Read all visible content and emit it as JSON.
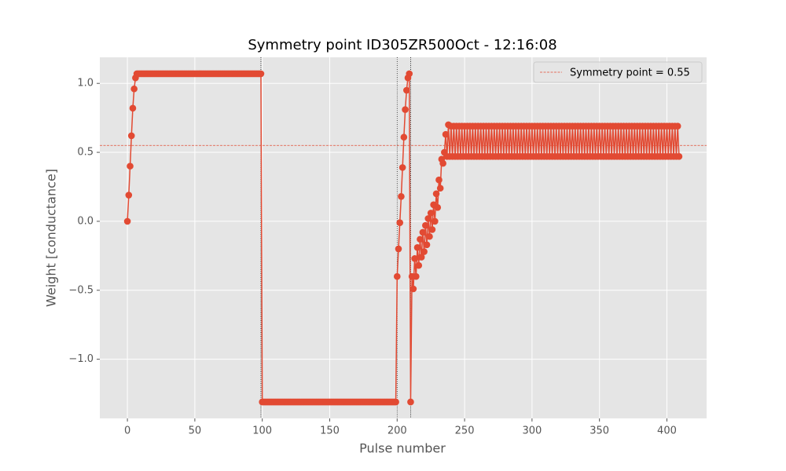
{
  "chart_data": {
    "type": "line",
    "title": "Symmetry point ID305ZR500Oct - 12:16:08",
    "xlabel": "Pulse number",
    "ylabel": "Weight [conductance]",
    "color": "#e24a33",
    "grid": true,
    "legend_position": "upper right",
    "hline": {
      "value": 0.55,
      "label": "Symmetry point = 0.55",
      "color": "#e24a33"
    },
    "vlines": [
      99,
      200,
      210
    ],
    "xlim": [
      -20.45,
      429.45
    ],
    "ylim": [
      -1.429,
      1.189
    ],
    "xticks": [
      0,
      50,
      100,
      150,
      200,
      250,
      300,
      350,
      400
    ],
    "yticks": [
      {
        "value": -1,
        "label": "−1.0"
      },
      {
        "value": -0.5,
        "label": "−0.5"
      },
      {
        "value": 0,
        "label": "0.0"
      },
      {
        "value": 0.5,
        "label": "0.5"
      },
      {
        "value": 1,
        "label": "1.0"
      }
    ],
    "x": [
      0,
      1,
      2,
      3,
      4,
      5,
      6,
      7,
      8,
      9,
      10,
      11,
      12,
      13,
      14,
      15,
      16,
      17,
      18,
      19,
      20,
      21,
      22,
      23,
      24,
      25,
      26,
      27,
      28,
      29,
      30,
      31,
      32,
      33,
      34,
      35,
      36,
      37,
      38,
      39,
      40,
      41,
      42,
      43,
      44,
      45,
      46,
      47,
      48,
      49,
      50,
      51,
      52,
      53,
      54,
      55,
      56,
      57,
      58,
      59,
      60,
      61,
      62,
      63,
      64,
      65,
      66,
      67,
      68,
      69,
      70,
      71,
      72,
      73,
      74,
      75,
      76,
      77,
      78,
      79,
      80,
      81,
      82,
      83,
      84,
      85,
      86,
      87,
      88,
      89,
      90,
      91,
      92,
      93,
      94,
      95,
      96,
      97,
      98,
      99,
      100,
      101,
      102,
      103,
      104,
      105,
      106,
      107,
      108,
      109,
      110,
      111,
      112,
      113,
      114,
      115,
      116,
      117,
      118,
      119,
      120,
      121,
      122,
      123,
      124,
      125,
      126,
      127,
      128,
      129,
      130,
      131,
      132,
      133,
      134,
      135,
      136,
      137,
      138,
      139,
      140,
      141,
      142,
      143,
      144,
      145,
      146,
      147,
      148,
      149,
      150,
      151,
      152,
      153,
      154,
      155,
      156,
      157,
      158,
      159,
      160,
      161,
      162,
      163,
      164,
      165,
      166,
      167,
      168,
      169,
      170,
      171,
      172,
      173,
      174,
      175,
      176,
      177,
      178,
      179,
      180,
      181,
      182,
      183,
      184,
      185,
      186,
      187,
      188,
      189,
      190,
      191,
      192,
      193,
      194,
      195,
      196,
      197,
      198,
      199,
      200,
      201,
      202,
      203,
      204,
      205,
      206,
      207,
      208,
      209,
      210,
      211,
      212,
      213,
      214,
      215,
      216,
      217,
      218,
      219,
      220,
      221,
      222,
      223,
      224,
      225,
      226,
      227,
      228,
      229,
      230,
      231,
      232,
      233,
      234,
      235,
      236,
      237,
      238,
      239,
      240,
      241,
      242,
      243,
      244,
      245,
      246,
      247,
      248,
      249,
      250,
      251,
      252,
      253,
      254,
      255,
      256,
      257,
      258,
      259,
      260,
      261,
      262,
      263,
      264,
      265,
      266,
      267,
      268,
      269,
      270,
      271,
      272,
      273,
      274,
      275,
      276,
      277,
      278,
      279,
      280,
      281,
      282,
      283,
      284,
      285,
      286,
      287,
      288,
      289,
      290,
      291,
      292,
      293,
      294,
      295,
      296,
      297,
      298,
      299,
      300,
      301,
      302,
      303,
      304,
      305,
      306,
      307,
      308,
      309,
      310,
      311,
      312,
      313,
      314,
      315,
      316,
      317,
      318,
      319,
      320,
      321,
      322,
      323,
      324,
      325,
      326,
      327,
      328,
      329,
      330,
      331,
      332,
      333,
      334,
      335,
      336,
      337,
      338,
      339,
      340,
      341,
      342,
      343,
      344,
      345,
      346,
      347,
      348,
      349,
      350,
      351,
      352,
      353,
      354,
      355,
      356,
      357,
      358,
      359,
      360,
      361,
      362,
      363,
      364,
      365,
      366,
      367,
      368,
      369,
      370,
      371,
      372,
      373,
      374,
      375,
      376,
      377,
      378,
      379,
      380,
      381,
      382,
      383,
      384,
      385,
      386,
      387,
      388,
      389,
      390,
      391,
      392,
      393,
      394,
      395,
      396,
      397,
      398,
      399,
      400,
      401,
      402,
      403,
      404,
      405,
      406,
      407,
      408,
      409
    ],
    "values": [
      0,
      0.19,
      0.4,
      0.62,
      0.82,
      0.96,
      1.04,
      1.07,
      1.07,
      1.07,
      1.07,
      1.07,
      1.07,
      1.07,
      1.07,
      1.07,
      1.07,
      1.07,
      1.07,
      1.07,
      1.07,
      1.07,
      1.07,
      1.07,
      1.07,
      1.07,
      1.07,
      1.07,
      1.07,
      1.07,
      1.07,
      1.07,
      1.07,
      1.07,
      1.07,
      1.07,
      1.07,
      1.07,
      1.07,
      1.07,
      1.07,
      1.07,
      1.07,
      1.07,
      1.07,
      1.07,
      1.07,
      1.07,
      1.07,
      1.07,
      1.07,
      1.07,
      1.07,
      1.07,
      1.07,
      1.07,
      1.07,
      1.07,
      1.07,
      1.07,
      1.07,
      1.07,
      1.07,
      1.07,
      1.07,
      1.07,
      1.07,
      1.07,
      1.07,
      1.07,
      1.07,
      1.07,
      1.07,
      1.07,
      1.07,
      1.07,
      1.07,
      1.07,
      1.07,
      1.07,
      1.07,
      1.07,
      1.07,
      1.07,
      1.07,
      1.07,
      1.07,
      1.07,
      1.07,
      1.07,
      1.07,
      1.07,
      1.07,
      1.07,
      1.07,
      1.07,
      1.07,
      1.07,
      1.07,
      1.07,
      -1.31,
      -1.31,
      -1.31,
      -1.31,
      -1.31,
      -1.31,
      -1.31,
      -1.31,
      -1.31,
      -1.31,
      -1.31,
      -1.31,
      -1.31,
      -1.31,
      -1.31,
      -1.31,
      -1.31,
      -1.31,
      -1.31,
      -1.31,
      -1.31,
      -1.31,
      -1.31,
      -1.31,
      -1.31,
      -1.31,
      -1.31,
      -1.31,
      -1.31,
      -1.31,
      -1.31,
      -1.31,
      -1.31,
      -1.31,
      -1.31,
      -1.31,
      -1.31,
      -1.31,
      -1.31,
      -1.31,
      -1.31,
      -1.31,
      -1.31,
      -1.31,
      -1.31,
      -1.31,
      -1.31,
      -1.31,
      -1.31,
      -1.31,
      -1.31,
      -1.31,
      -1.31,
      -1.31,
      -1.31,
      -1.31,
      -1.31,
      -1.31,
      -1.31,
      -1.31,
      -1.31,
      -1.31,
      -1.31,
      -1.31,
      -1.31,
      -1.31,
      -1.31,
      -1.31,
      -1.31,
      -1.31,
      -1.31,
      -1.31,
      -1.31,
      -1.31,
      -1.31,
      -1.31,
      -1.31,
      -1.31,
      -1.31,
      -1.31,
      -1.31,
      -1.31,
      -1.31,
      -1.31,
      -1.31,
      -1.31,
      -1.31,
      -1.31,
      -1.31,
      -1.31,
      -1.31,
      -1.31,
      -1.31,
      -1.31,
      -1.31,
      -1.31,
      -1.31,
      -1.31,
      -1.31,
      -1.31,
      -0.4,
      -0.2,
      -0.01,
      0.18,
      0.39,
      0.61,
      0.81,
      0.95,
      1.04,
      1.07,
      -1.31,
      -0.4,
      -0.49,
      -0.27,
      -0.4,
      -0.19,
      -0.32,
      -0.13,
      -0.26,
      -0.08,
      -0.22,
      -0.03,
      -0.17,
      0.02,
      -0.11,
      0.06,
      -0.06,
      0.12,
      0,
      0.2,
      0.1,
      0.3,
      0.24,
      0.45,
      0.42,
      0.5,
      0.63,
      0.47,
      0.7,
      0.47,
      0.69,
      0.47,
      0.69,
      0.47,
      0.69,
      0.47,
      0.69,
      0.47,
      0.69,
      0.47,
      0.69,
      0.47,
      0.69,
      0.47,
      0.69,
      0.47,
      0.69,
      0.47,
      0.69,
      0.47,
      0.69,
      0.47,
      0.69,
      0.47,
      0.69,
      0.47,
      0.69,
      0.47,
      0.69,
      0.47,
      0.69,
      0.47,
      0.69,
      0.47,
      0.69,
      0.47,
      0.69,
      0.47,
      0.69,
      0.47,
      0.69,
      0.47,
      0.69,
      0.47,
      0.69,
      0.47,
      0.69,
      0.47,
      0.69,
      0.47,
      0.69,
      0.47,
      0.69,
      0.47,
      0.69,
      0.47,
      0.69,
      0.47,
      0.69,
      0.47,
      0.69,
      0.47,
      0.69,
      0.47,
      0.69,
      0.47,
      0.69,
      0.47,
      0.69,
      0.47,
      0.69,
      0.47,
      0.69,
      0.47,
      0.69,
      0.47,
      0.69,
      0.47,
      0.69,
      0.47,
      0.69,
      0.47,
      0.69,
      0.47,
      0.69,
      0.47,
      0.69,
      0.47,
      0.69,
      0.47,
      0.69,
      0.47,
      0.69,
      0.47,
      0.69,
      0.47,
      0.69,
      0.47,
      0.69,
      0.47,
      0.69,
      0.47,
      0.69,
      0.47,
      0.69,
      0.47,
      0.69,
      0.47,
      0.69,
      0.47,
      0.69,
      0.47,
      0.69,
      0.47,
      0.69,
      0.47,
      0.69,
      0.47,
      0.69,
      0.47,
      0.69,
      0.47,
      0.69,
      0.47,
      0.69,
      0.47,
      0.69,
      0.47,
      0.69,
      0.47,
      0.69,
      0.47,
      0.69,
      0.47,
      0.69,
      0.47,
      0.69,
      0.47,
      0.69,
      0.47,
      0.69,
      0.47,
      0.69,
      0.47,
      0.69,
      0.47,
      0.69,
      0.47,
      0.69,
      0.47,
      0.69,
      0.47,
      0.69,
      0.47,
      0.69,
      0.47,
      0.69,
      0.47,
      0.69,
      0.47,
      0.69,
      0.47,
      0.69,
      0.47,
      0.69,
      0.47,
      0.69,
      0.47,
      0.69,
      0.47
    ]
  }
}
